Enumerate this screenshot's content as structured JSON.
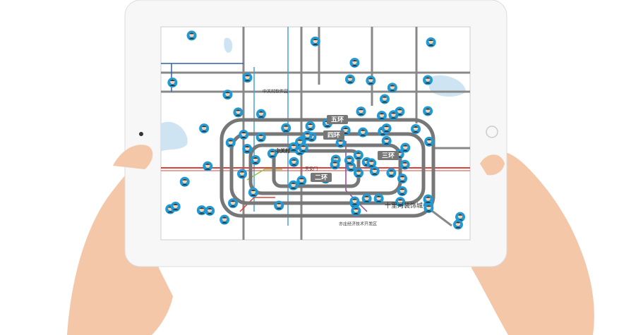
{
  "map": {
    "ring_labels": [
      "五环",
      "四环",
      "三环",
      "二环"
    ],
    "place_labels": [
      "中关村",
      "天安门",
      "中关村软件园",
      "十里河装饰城",
      "亦庄经济技术开发区"
    ]
  }
}
